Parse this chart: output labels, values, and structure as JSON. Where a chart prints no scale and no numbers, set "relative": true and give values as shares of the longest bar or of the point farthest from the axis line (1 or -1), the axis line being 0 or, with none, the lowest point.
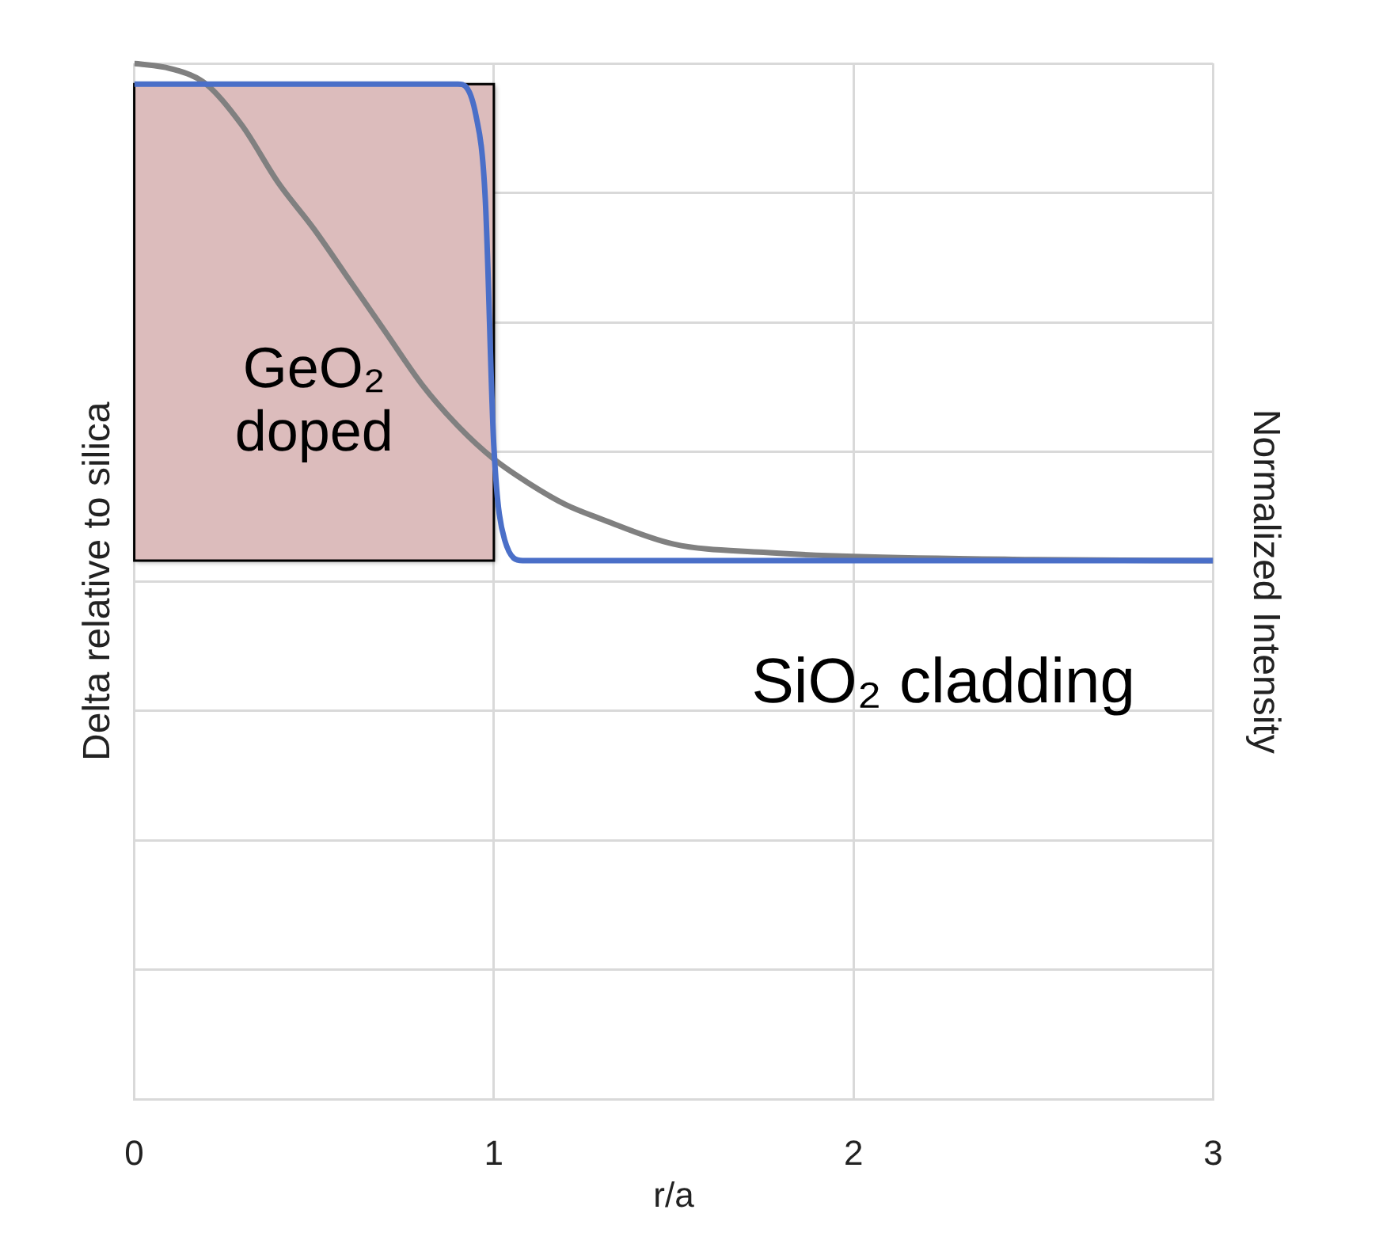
{
  "chart_data": {
    "type": "line",
    "xlabel": "r/a",
    "ylabel": "Delta relative to silica",
    "y2label": "Normalized Intensity",
    "relative": true,
    "xlim": [
      0,
      3
    ],
    "xticks": [
      0,
      1,
      2,
      3
    ],
    "series": [
      {
        "color": "#4a6fc8",
        "x": [
          0,
          0.5,
          0.9,
          0.95,
          0.976,
          1.0,
          1.03,
          1.08,
          1.5,
          2,
          3
        ],
        "values": [
          0.98,
          0.98,
          0.98,
          0.95,
          0.87,
          0.63,
          0.54,
          0.52,
          0.52,
          0.52,
          0.52
        ]
      },
      {
        "color": "#808080",
        "x": [
          0,
          0.1,
          0.2,
          0.3,
          0.4,
          0.5,
          0.6,
          0.7,
          0.8,
          0.9,
          1.0,
          1.1,
          1.2,
          1.3,
          1.5,
          1.75,
          2,
          2.5,
          3
        ],
        "values": [
          1,
          0.995,
          0.98,
          0.94,
          0.885,
          0.84,
          0.79,
          0.74,
          0.69,
          0.65,
          0.618,
          0.594,
          0.574,
          0.56,
          0.536,
          0.528,
          0.524,
          0.521,
          0.52
        ]
      }
    ],
    "bands": [
      {
        "axis": "x",
        "from": 0,
        "to": 1,
        "label": "GeO₂ doped",
        "color": "#dcbcbc"
      }
    ],
    "annotations": [
      "SiO₂ cladding"
    ],
    "grid": true,
    "legend": false,
    "marker": "none",
    "line_style": "solid",
    "tick_labels": "x"
  }
}
